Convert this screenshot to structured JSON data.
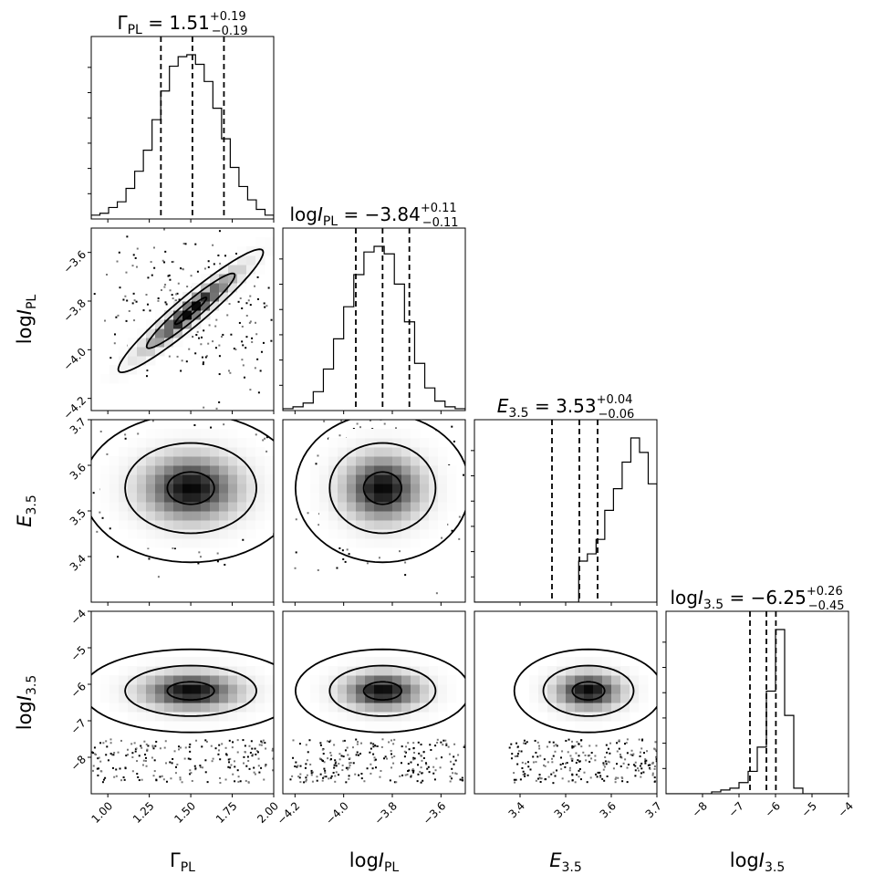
{
  "chart_data": {
    "type": "corner",
    "parameters": [
      "Γ_PL",
      "log I_PL",
      "E_3.5",
      "log I_3.5"
    ],
    "titles": [
      {
        "name": "Γ_PL",
        "median": "1.51",
        "plus": "+0.19",
        "minus": "−0.19"
      },
      {
        "name": "logI_PL",
        "median": "−3.84",
        "plus": "+0.11",
        "minus": "−0.11"
      },
      {
        "name": "E_3.5",
        "median": "3.53",
        "plus": "+0.04",
        "minus": "−0.06"
      },
      {
        "name": "logI_3.5",
        "median": "−6.25",
        "plus": "+0.26",
        "minus": "−0.45"
      }
    ],
    "axis_labels": [
      {
        "base": "Γ",
        "sub": "PL"
      },
      {
        "base": "log",
        "italic": "I",
        "sub": "PL"
      },
      {
        "italic": "E",
        "sub": "3.5"
      },
      {
        "base": "log",
        "italic": "I",
        "sub": "3.5"
      }
    ],
    "ranges": [
      [
        0.9,
        2.0
      ],
      [
        -4.25,
        -3.5
      ],
      [
        3.3,
        3.7
      ],
      [
        -9.0,
        -4.0
      ]
    ],
    "ticks": [
      {
        "values": [
          1.0,
          1.25,
          1.5,
          1.75,
          2.0
        ],
        "labels": [
          "1.00",
          "1.25",
          "1.50",
          "1.75",
          "2.00"
        ]
      },
      {
        "values": [
          -4.2,
          -4.0,
          -3.8,
          -3.6
        ],
        "labels": [
          "−4.2",
          "−4.0",
          "−3.8",
          "−3.6"
        ]
      },
      {
        "values": [
          3.4,
          3.5,
          3.6,
          3.7
        ],
        "labels": [
          "3.4",
          "3.5",
          "3.6",
          "3.7"
        ]
      },
      {
        "values": [
          -8,
          -7,
          -6,
          -5,
          -4
        ],
        "labels": [
          "−8",
          "−7",
          "−6",
          "−5",
          "−4"
        ]
      }
    ],
    "quantiles": [
      [
        1.32,
        1.51,
        1.7
      ],
      [
        -3.95,
        -3.84,
        -3.73
      ],
      [
        3.47,
        3.53,
        3.57
      ],
      [
        -6.7,
        -6.25,
        -5.99
      ]
    ],
    "histograms": [
      {
        "edges_from": 0.9,
        "edges_to": 2.0,
        "counts": [
          2,
          3,
          6,
          9,
          16,
          25,
          36,
          52,
          67,
          80,
          85,
          86,
          81,
          72,
          58,
          42,
          27,
          17,
          10,
          5,
          2
        ]
      },
      {
        "edges_from": -4.25,
        "edges_to": -3.5,
        "counts": [
          1,
          2,
          4,
          10,
          22,
          38,
          55,
          72,
          84,
          87,
          83,
          67,
          47,
          25,
          12,
          5,
          2,
          1
        ]
      },
      {
        "edges_from": 3.3,
        "edges_to": 3.7,
        "counts": [
          0,
          0,
          0,
          0,
          0,
          0,
          0,
          0,
          0,
          0,
          0,
          0,
          17,
          20,
          26,
          38,
          47,
          58,
          68,
          62,
          49
        ]
      },
      {
        "edges_from": -9.0,
        "edges_to": -4.0,
        "counts": [
          0,
          0,
          0,
          0,
          0,
          1,
          2,
          3,
          6,
          12,
          25,
          55,
          88,
          42,
          3,
          0,
          0,
          0,
          0,
          0
        ]
      }
    ],
    "joint_peaks": [
      {
        "row": 1,
        "col": 0,
        "mean": [
          1.5,
          -3.84
        ],
        "sd": [
          0.19,
          0.11
        ],
        "rho": 0.95
      },
      {
        "row": 2,
        "col": 0,
        "mean": [
          1.5,
          3.55
        ],
        "sd": [
          0.2,
          0.05
        ],
        "rho": 0.0
      },
      {
        "row": 2,
        "col": 1,
        "mean": [
          -3.84,
          3.55
        ],
        "sd": [
          0.11,
          0.05
        ],
        "rho": 0.0
      },
      {
        "row": 3,
        "col": 0,
        "mean": [
          1.5,
          -6.18
        ],
        "sd": [
          0.2,
          0.35
        ],
        "rho": 0.0
      },
      {
        "row": 3,
        "col": 1,
        "mean": [
          -3.84,
          -6.18
        ],
        "sd": [
          0.11,
          0.35
        ],
        "rho": 0.0
      },
      {
        "row": 3,
        "col": 2,
        "mean": [
          3.55,
          -6.18
        ],
        "sd": [
          0.05,
          0.35
        ],
        "rho": 0.0
      }
    ],
    "grid": false
  }
}
